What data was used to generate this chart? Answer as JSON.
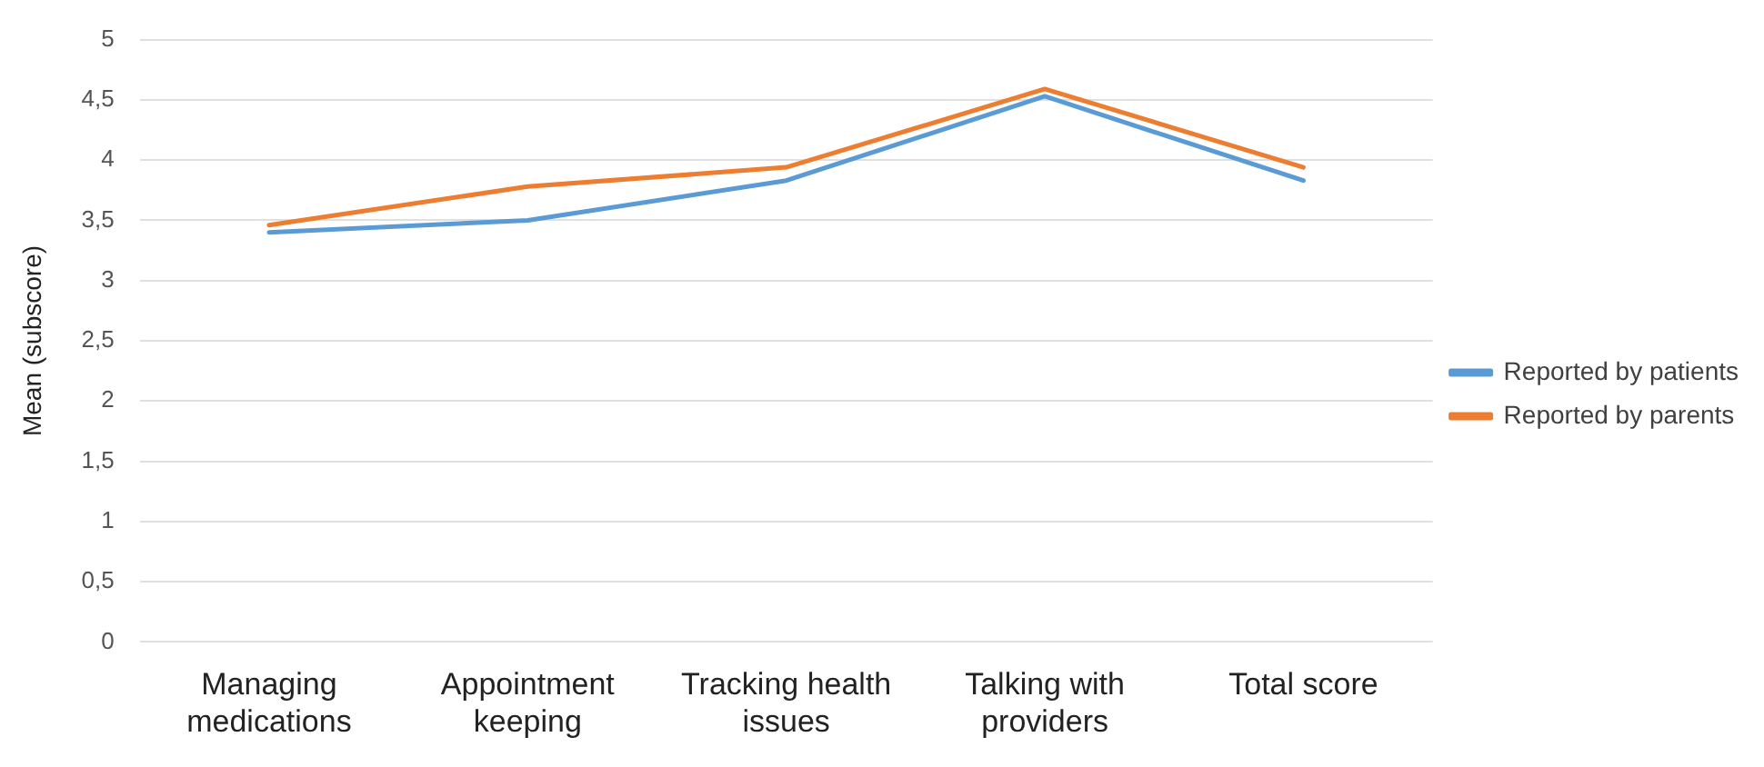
{
  "chart_data": {
    "type": "line",
    "ylabel": "Mean (subscore)",
    "categories": [
      "Managing medications",
      "Appointment keeping",
      "Tracking health issues",
      "Talking with providers",
      "Total score"
    ],
    "series": [
      {
        "name": "Reported by patients",
        "color": "#5b9bd5",
        "values": [
          3.4,
          3.5,
          3.83,
          4.53,
          3.83
        ]
      },
      {
        "name": "Reported by parents",
        "color": "#ed7d31",
        "values": [
          3.46,
          3.78,
          3.94,
          4.59,
          3.94
        ]
      }
    ],
    "ylim": [
      0,
      5
    ],
    "yticks": [
      0,
      {
        "value": 0.5,
        "label": "0,5"
      },
      1,
      {
        "value": 1.5,
        "label": "1,5"
      },
      2,
      {
        "value": 2.5,
        "label": "2,5"
      },
      3,
      {
        "value": 3.5,
        "label": "3,5"
      },
      4,
      {
        "value": 4.5,
        "label": "4,5"
      },
      5
    ],
    "grid": "y",
    "legend": "right",
    "marker": "none",
    "line_style": "solid"
  }
}
